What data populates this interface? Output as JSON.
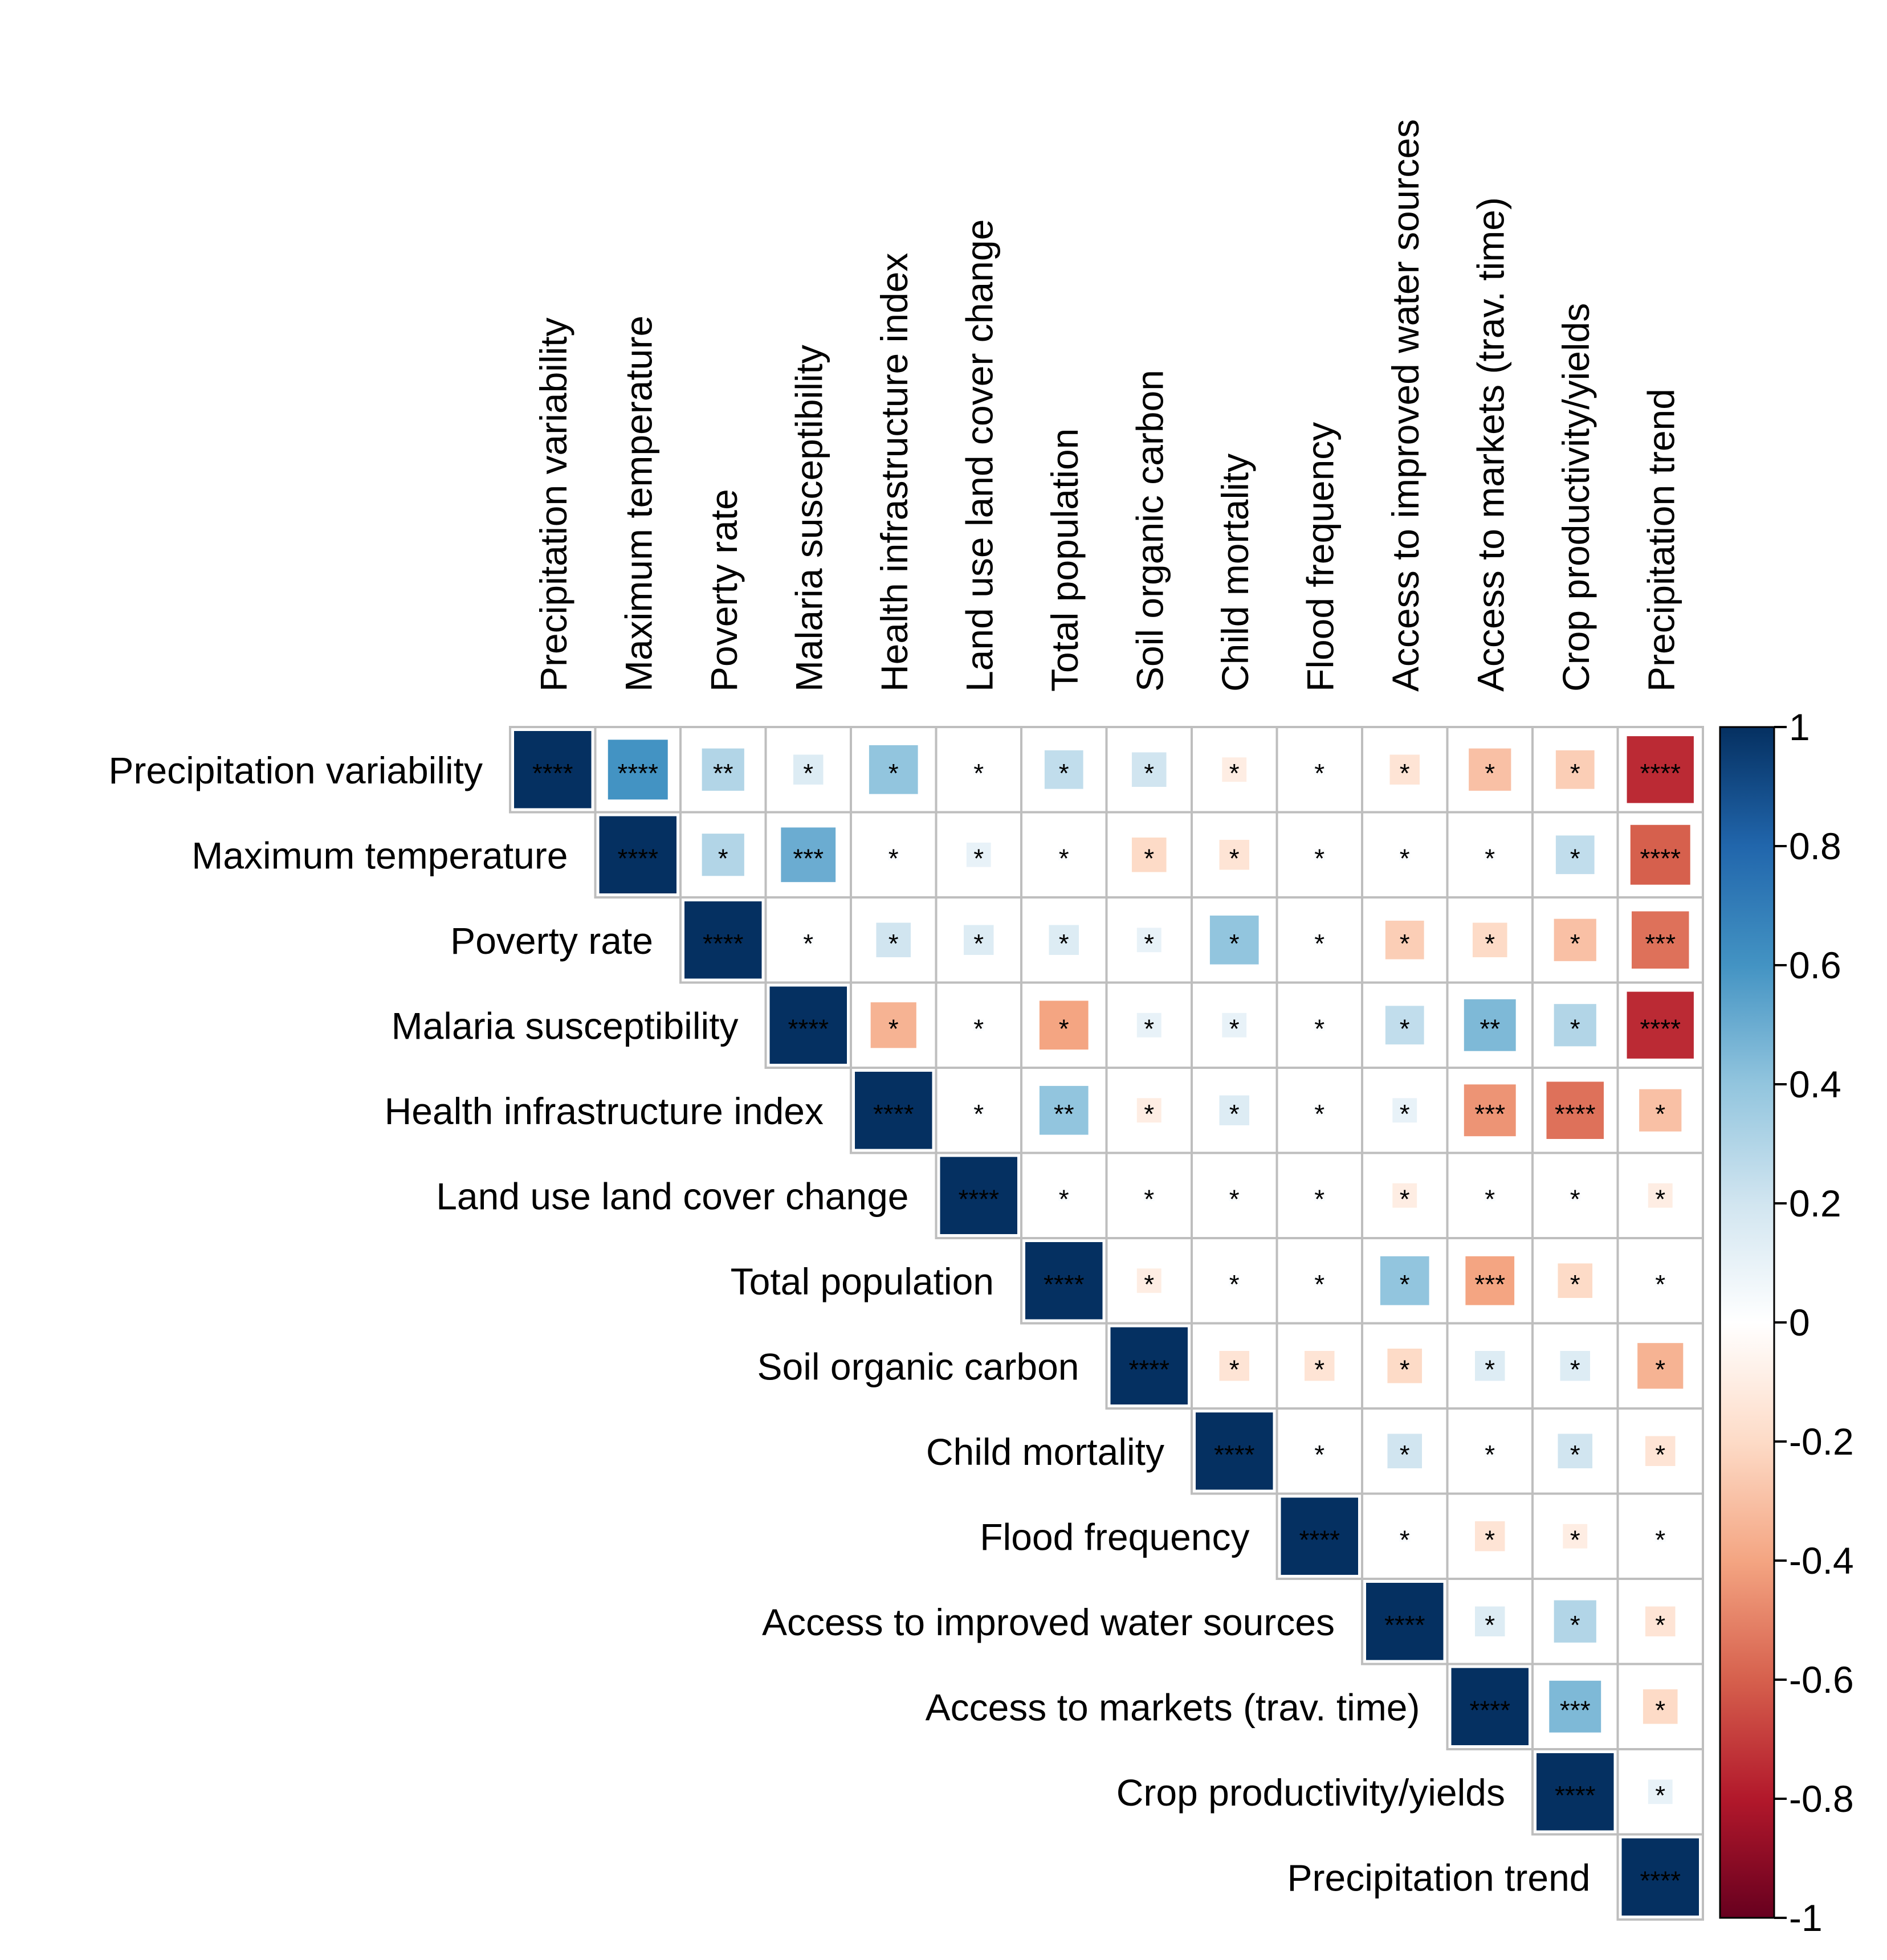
{
  "chart_data": {
    "type": "heatmap",
    "variant": "upper-triangular correlation matrix (square glyphs scaled by |r|)",
    "variables": [
      "Precipitation variability",
      "Maximum temperature",
      "Poverty rate",
      "Malaria susceptibility",
      "Health infrastructure index",
      "Land use land cover change",
      "Total population",
      "Soil organic carbon",
      "Child mortality",
      "Flood frequency",
      "Access to improved water sources",
      "Access to markets (trav. time)",
      "Crop productivity/yields",
      "Precipitation trend"
    ],
    "correlations": [
      [
        1,
        0.6,
        0.3,
        0.15,
        0.4,
        0.02,
        0.25,
        0.2,
        -0.1,
        0.02,
        -0.15,
        -0.3,
        -0.25,
        -0.75
      ],
      [
        null,
        1,
        0.3,
        0.5,
        0.02,
        0.1,
        0.02,
        -0.2,
        -0.15,
        0.02,
        0.02,
        0.02,
        0.25,
        -0.6
      ],
      [
        null,
        null,
        1,
        0.02,
        0.2,
        0.15,
        0.15,
        0.1,
        0.4,
        0.02,
        -0.25,
        -0.2,
        -0.3,
        -0.55
      ],
      [
        null,
        null,
        null,
        1,
        -0.35,
        0.02,
        -0.4,
        0.1,
        0.1,
        0.02,
        0.25,
        0.45,
        0.3,
        -0.75
      ],
      [
        null,
        null,
        null,
        null,
        1,
        0.02,
        0.4,
        -0.1,
        0.15,
        0.02,
        0.1,
        -0.45,
        -0.55,
        -0.3
      ],
      [
        null,
        null,
        null,
        null,
        null,
        1,
        0.02,
        0.02,
        0.02,
        0.02,
        -0.1,
        0.02,
        0.02,
        -0.1
      ],
      [
        null,
        null,
        null,
        null,
        null,
        null,
        1,
        -0.1,
        0.02,
        0.02,
        0.4,
        -0.4,
        -0.2,
        0.02
      ],
      [
        null,
        null,
        null,
        null,
        null,
        null,
        null,
        1,
        -0.15,
        -0.15,
        -0.2,
        0.15,
        0.15,
        -0.35
      ],
      [
        null,
        null,
        null,
        null,
        null,
        null,
        null,
        null,
        1,
        0.02,
        0.2,
        0.02,
        0.2,
        -0.15
      ],
      [
        null,
        null,
        null,
        null,
        null,
        null,
        null,
        null,
        null,
        1,
        0.02,
        -0.15,
        -0.1,
        0.02
      ],
      [
        null,
        null,
        null,
        null,
        null,
        null,
        null,
        null,
        null,
        null,
        1,
        0.15,
        0.3,
        -0.15
      ],
      [
        null,
        null,
        null,
        null,
        null,
        null,
        null,
        null,
        null,
        null,
        null,
        1,
        0.45,
        -0.2
      ],
      [
        null,
        null,
        null,
        null,
        null,
        null,
        null,
        null,
        null,
        null,
        null,
        null,
        1,
        0.1
      ],
      [
        null,
        null,
        null,
        null,
        null,
        null,
        null,
        null,
        null,
        null,
        null,
        null,
        null,
        1
      ]
    ],
    "significance": [
      [
        "****",
        "****",
        "**",
        "*",
        "*",
        "*",
        "*",
        "*",
        "*",
        "*",
        "*",
        "*",
        "*",
        "****"
      ],
      [
        null,
        "****",
        "*",
        "***",
        "*",
        "*",
        "*",
        "*",
        "*",
        "*",
        "*",
        "*",
        "*",
        "****"
      ],
      [
        null,
        null,
        "****",
        "*",
        "*",
        "*",
        "*",
        "*",
        "*",
        "*",
        "*",
        "*",
        "*",
        "***"
      ],
      [
        null,
        null,
        null,
        "****",
        "*",
        "*",
        "*",
        "*",
        "*",
        "*",
        "*",
        "**",
        "*",
        "****"
      ],
      [
        null,
        null,
        null,
        null,
        "****",
        "*",
        "**",
        "*",
        "*",
        "*",
        "*",
        "***",
        "****",
        "*"
      ],
      [
        null,
        null,
        null,
        null,
        null,
        "****",
        "*",
        "*",
        "*",
        "*",
        "*",
        "*",
        "*",
        "*"
      ],
      [
        null,
        null,
        null,
        null,
        null,
        null,
        "****",
        "*",
        "*",
        "*",
        "*",
        "***",
        "*",
        "*"
      ],
      [
        null,
        null,
        null,
        null,
        null,
        null,
        null,
        "****",
        "*",
        "*",
        "*",
        "*",
        "*",
        "*"
      ],
      [
        null,
        null,
        null,
        null,
        null,
        null,
        null,
        null,
        "****",
        "*",
        "*",
        "*",
        "*",
        "*"
      ],
      [
        null,
        null,
        null,
        null,
        null,
        null,
        null,
        null,
        null,
        "****",
        "*",
        "*",
        "*",
        "*"
      ],
      [
        null,
        null,
        null,
        null,
        null,
        null,
        null,
        null,
        null,
        null,
        "****",
        "*",
        "*",
        "*"
      ],
      [
        null,
        null,
        null,
        null,
        null,
        null,
        null,
        null,
        null,
        null,
        null,
        "****",
        "***",
        "*"
      ],
      [
        null,
        null,
        null,
        null,
        null,
        null,
        null,
        null,
        null,
        null,
        null,
        null,
        "****",
        "*"
      ],
      [
        null,
        null,
        null,
        null,
        null,
        null,
        null,
        null,
        null,
        null,
        null,
        null,
        null,
        "****"
      ]
    ],
    "colorbar": {
      "range": [
        -1,
        1
      ],
      "ticks": [
        1,
        0.8,
        0.6,
        0.4,
        0.2,
        0,
        -0.2,
        -0.4,
        -0.6,
        -0.8,
        -1
      ],
      "tick_labels": [
        "1",
        "0.8",
        "0.6",
        "0.4",
        "0.2",
        "0",
        "-0.2",
        "-0.4",
        "-0.6",
        "-0.8",
        "-1"
      ],
      "palette": [
        "#67001F",
        "#B2182B",
        "#D6604D",
        "#F4A582",
        "#FDDBC7",
        "#FFFFFF",
        "#D1E5F0",
        "#92C5DE",
        "#4393C3",
        "#2166AC",
        "#053061"
      ],
      "placement": "right"
    },
    "grid_color": "#BEBEBE"
  }
}
